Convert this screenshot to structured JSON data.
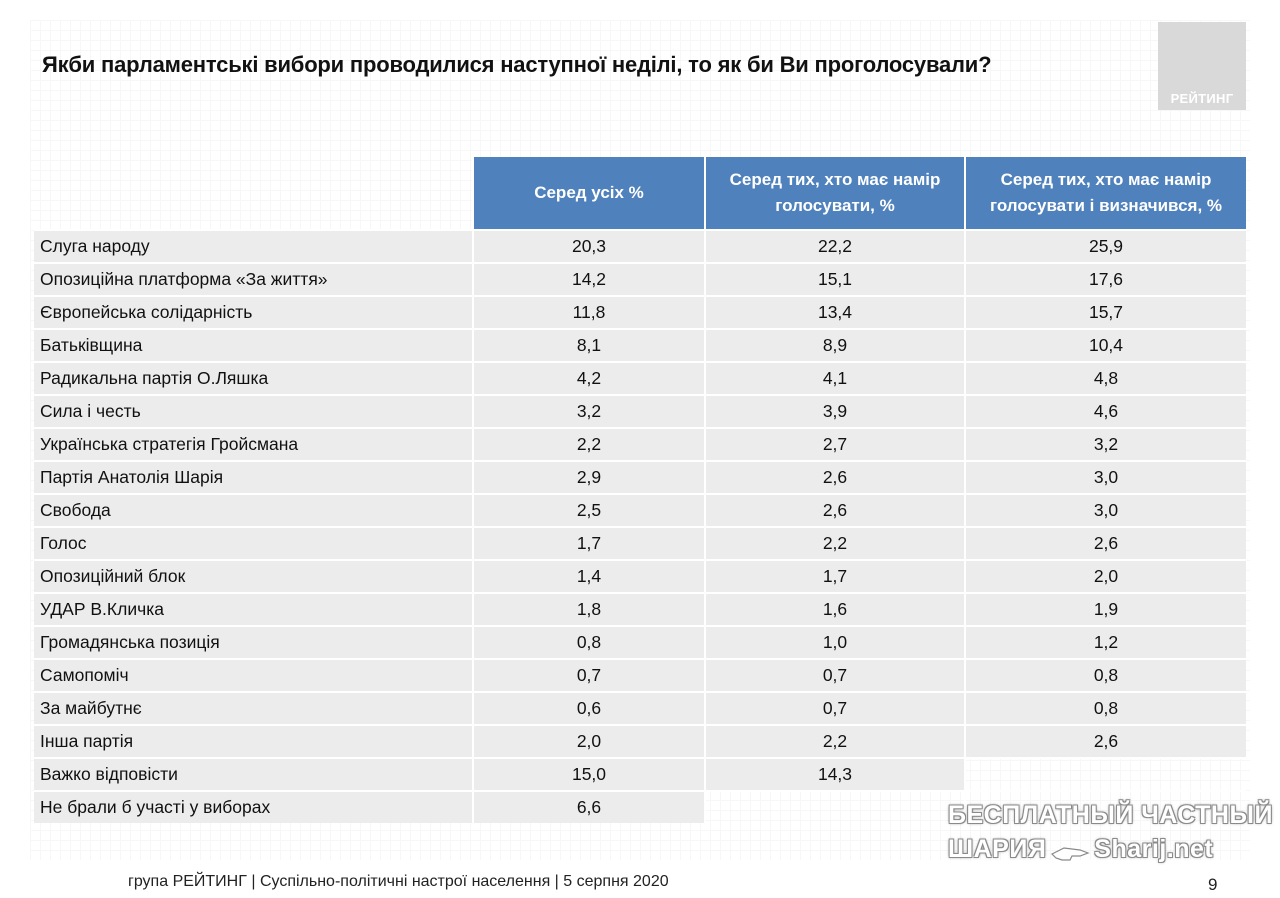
{
  "title": "Якби парламентські вибори проводилися наступної неділі, то як би Ви проголосували?",
  "logo_text": "РЕЙТИНГ",
  "table": {
    "headers": [
      "",
      "Серед усіх %",
      "Серед тих, хто має намір голосувати, %",
      "Серед тих, хто має намір голосувати і визначився, %"
    ],
    "rows": [
      [
        "Слуга народу",
        "20,3",
        "22,2",
        "25,9"
      ],
      [
        "Опозиційна платформа «За життя»",
        "14,2",
        "15,1",
        "17,6"
      ],
      [
        "Європейська солідарність",
        "11,8",
        "13,4",
        "15,7"
      ],
      [
        "Батьківщина",
        "8,1",
        "8,9",
        "10,4"
      ],
      [
        "Радикальна партія О.Ляшка",
        "4,2",
        "4,1",
        "4,8"
      ],
      [
        "Сила і честь",
        "3,2",
        "3,9",
        "4,6"
      ],
      [
        "Українська стратегія Гройсмана",
        "2,2",
        "2,7",
        "3,2"
      ],
      [
        "Партія Анатолія Шарія",
        "2,9",
        "2,6",
        "3,0"
      ],
      [
        "Свобода",
        "2,5",
        "2,6",
        "3,0"
      ],
      [
        "Голос",
        "1,7",
        "2,2",
        "2,6"
      ],
      [
        "Опозиційний блок",
        "1,4",
        "1,7",
        "2,0"
      ],
      [
        "УДАР В.Кличка",
        "1,8",
        "1,6",
        "1,9"
      ],
      [
        "Громадянська позиція",
        "0,8",
        "1,0",
        "1,2"
      ],
      [
        "Самопоміч",
        "0,7",
        "0,7",
        "0,8"
      ],
      [
        "За майбутнє",
        "0,6",
        "0,7",
        "0,8"
      ],
      [
        "Інша партія",
        "2,0",
        "2,2",
        "2,6"
      ],
      [
        "Важко відповісти",
        "15,0",
        "14,3",
        ""
      ],
      [
        "Не брали б участі у виборах",
        "6,6",
        "",
        ""
      ]
    ]
  },
  "footer": "група РЕЙТИНГ | Суспільно-політичні настрої населення  | 5 серпня 2020",
  "page_number": "9",
  "watermark": {
    "line1": "БЕСПЛАТНЫЙ ЧАСТНЫЙ",
    "line2_left": "ШАРИЯ",
    "line2_right": "Sharij.net",
    "icon": "pointing-hand-icon"
  },
  "colors": {
    "header_bg": "#4f81bd",
    "row_bg": "#ececec",
    "logo_bg": "#d9d9d9"
  }
}
